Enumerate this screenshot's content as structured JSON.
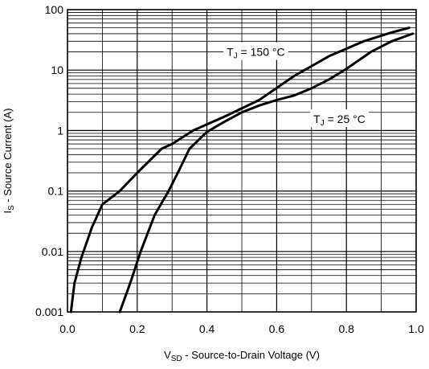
{
  "chart_data": {
    "type": "line",
    "xlabel": {
      "main": "V",
      "sub": "SD",
      "rest": " - Source-to-Drain Voltage (V)"
    },
    "ylabel": {
      "main": "I",
      "sub": "S",
      "rest": " - Source Current (A)"
    },
    "xlim": [
      0.0,
      1.0
    ],
    "ylim": [
      0.001,
      100
    ],
    "yscale": "log",
    "grid": true,
    "x_ticks": [
      0.0,
      0.2,
      0.4,
      0.6,
      0.8,
      1.0
    ],
    "x_tick_labels": [
      "0.0",
      "0.2",
      "0.4",
      "0.6",
      "0.8",
      "1.0"
    ],
    "y_ticks": [
      0.001,
      0.01,
      0.1,
      1,
      10,
      100
    ],
    "y_tick_labels": [
      "0.001",
      "0.01",
      "0.1",
      "1",
      "10",
      "100"
    ],
    "series": [
      {
        "name": "TJ = 150 °C",
        "label_main": "T",
        "label_sub": "J",
        "label_rest": " = 150 °C",
        "color": "#000000",
        "x": [
          0.01,
          0.02,
          0.04,
          0.07,
          0.1,
          0.15,
          0.2,
          0.27,
          0.3,
          0.36,
          0.45,
          0.55,
          0.65,
          0.75,
          0.85,
          0.93,
          0.98
        ],
        "y": [
          0.001,
          0.003,
          0.008,
          0.025,
          0.06,
          0.1,
          0.2,
          0.5,
          0.6,
          1.0,
          1.7,
          3.2,
          8.0,
          17,
          30,
          42,
          50
        ]
      },
      {
        "name": "TJ = 25 °C",
        "label_main": "T",
        "label_sub": "J",
        "label_rest": " = 25 °C",
        "color": "#000000",
        "x": [
          0.15,
          0.18,
          0.21,
          0.25,
          0.29,
          0.32,
          0.35,
          0.4,
          0.45,
          0.5,
          0.55,
          0.6,
          0.65,
          0.7,
          0.75,
          0.8,
          0.87,
          0.93,
          0.99
        ],
        "y": [
          0.001,
          0.003,
          0.01,
          0.04,
          0.1,
          0.22,
          0.5,
          0.95,
          1.4,
          2.0,
          2.6,
          3.2,
          3.8,
          5.0,
          7.0,
          10.5,
          20,
          30,
          40
        ]
      }
    ]
  }
}
